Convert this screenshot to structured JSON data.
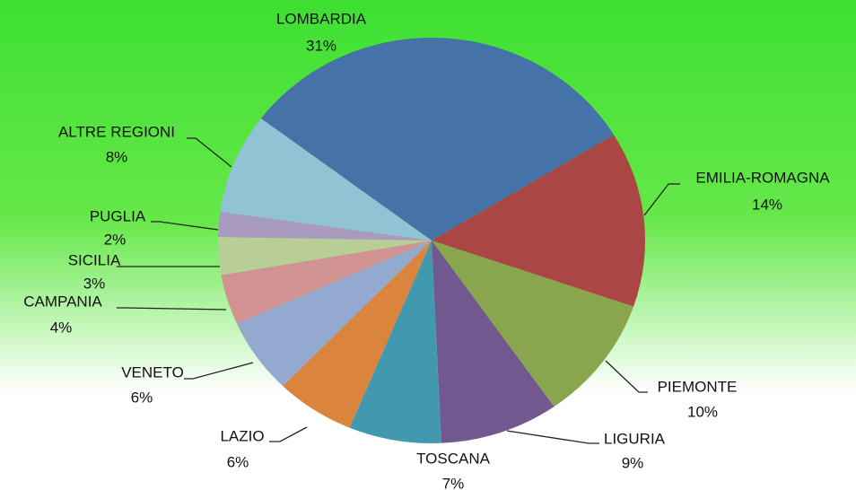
{
  "chart_data": {
    "type": "pie",
    "categories": [
      "LOMBARDIA",
      "EMILIA-ROMAGNA",
      "PIEMONTE",
      "LIGURIA",
      "TOSCANA",
      "LAZIO",
      "VENETO",
      "CAMPANIA",
      "SICILIA",
      "PUGLIA",
      "ALTRE REGIONI"
    ],
    "values": [
      31,
      14,
      10,
      9,
      7,
      6,
      6,
      4,
      3,
      2,
      8
    ],
    "value_labels": [
      "31%",
      "14%",
      "10%",
      "9%",
      "7%",
      "6%",
      "6%",
      "4%",
      "3%",
      "2%",
      "8%"
    ],
    "colors": [
      "#4572a7",
      "#aa4643",
      "#89a54e",
      "#71588f",
      "#4198af",
      "#db843d",
      "#93a9cf",
      "#d19392",
      "#b9cd96",
      "#a99bbd",
      "#92c3d4"
    ]
  }
}
